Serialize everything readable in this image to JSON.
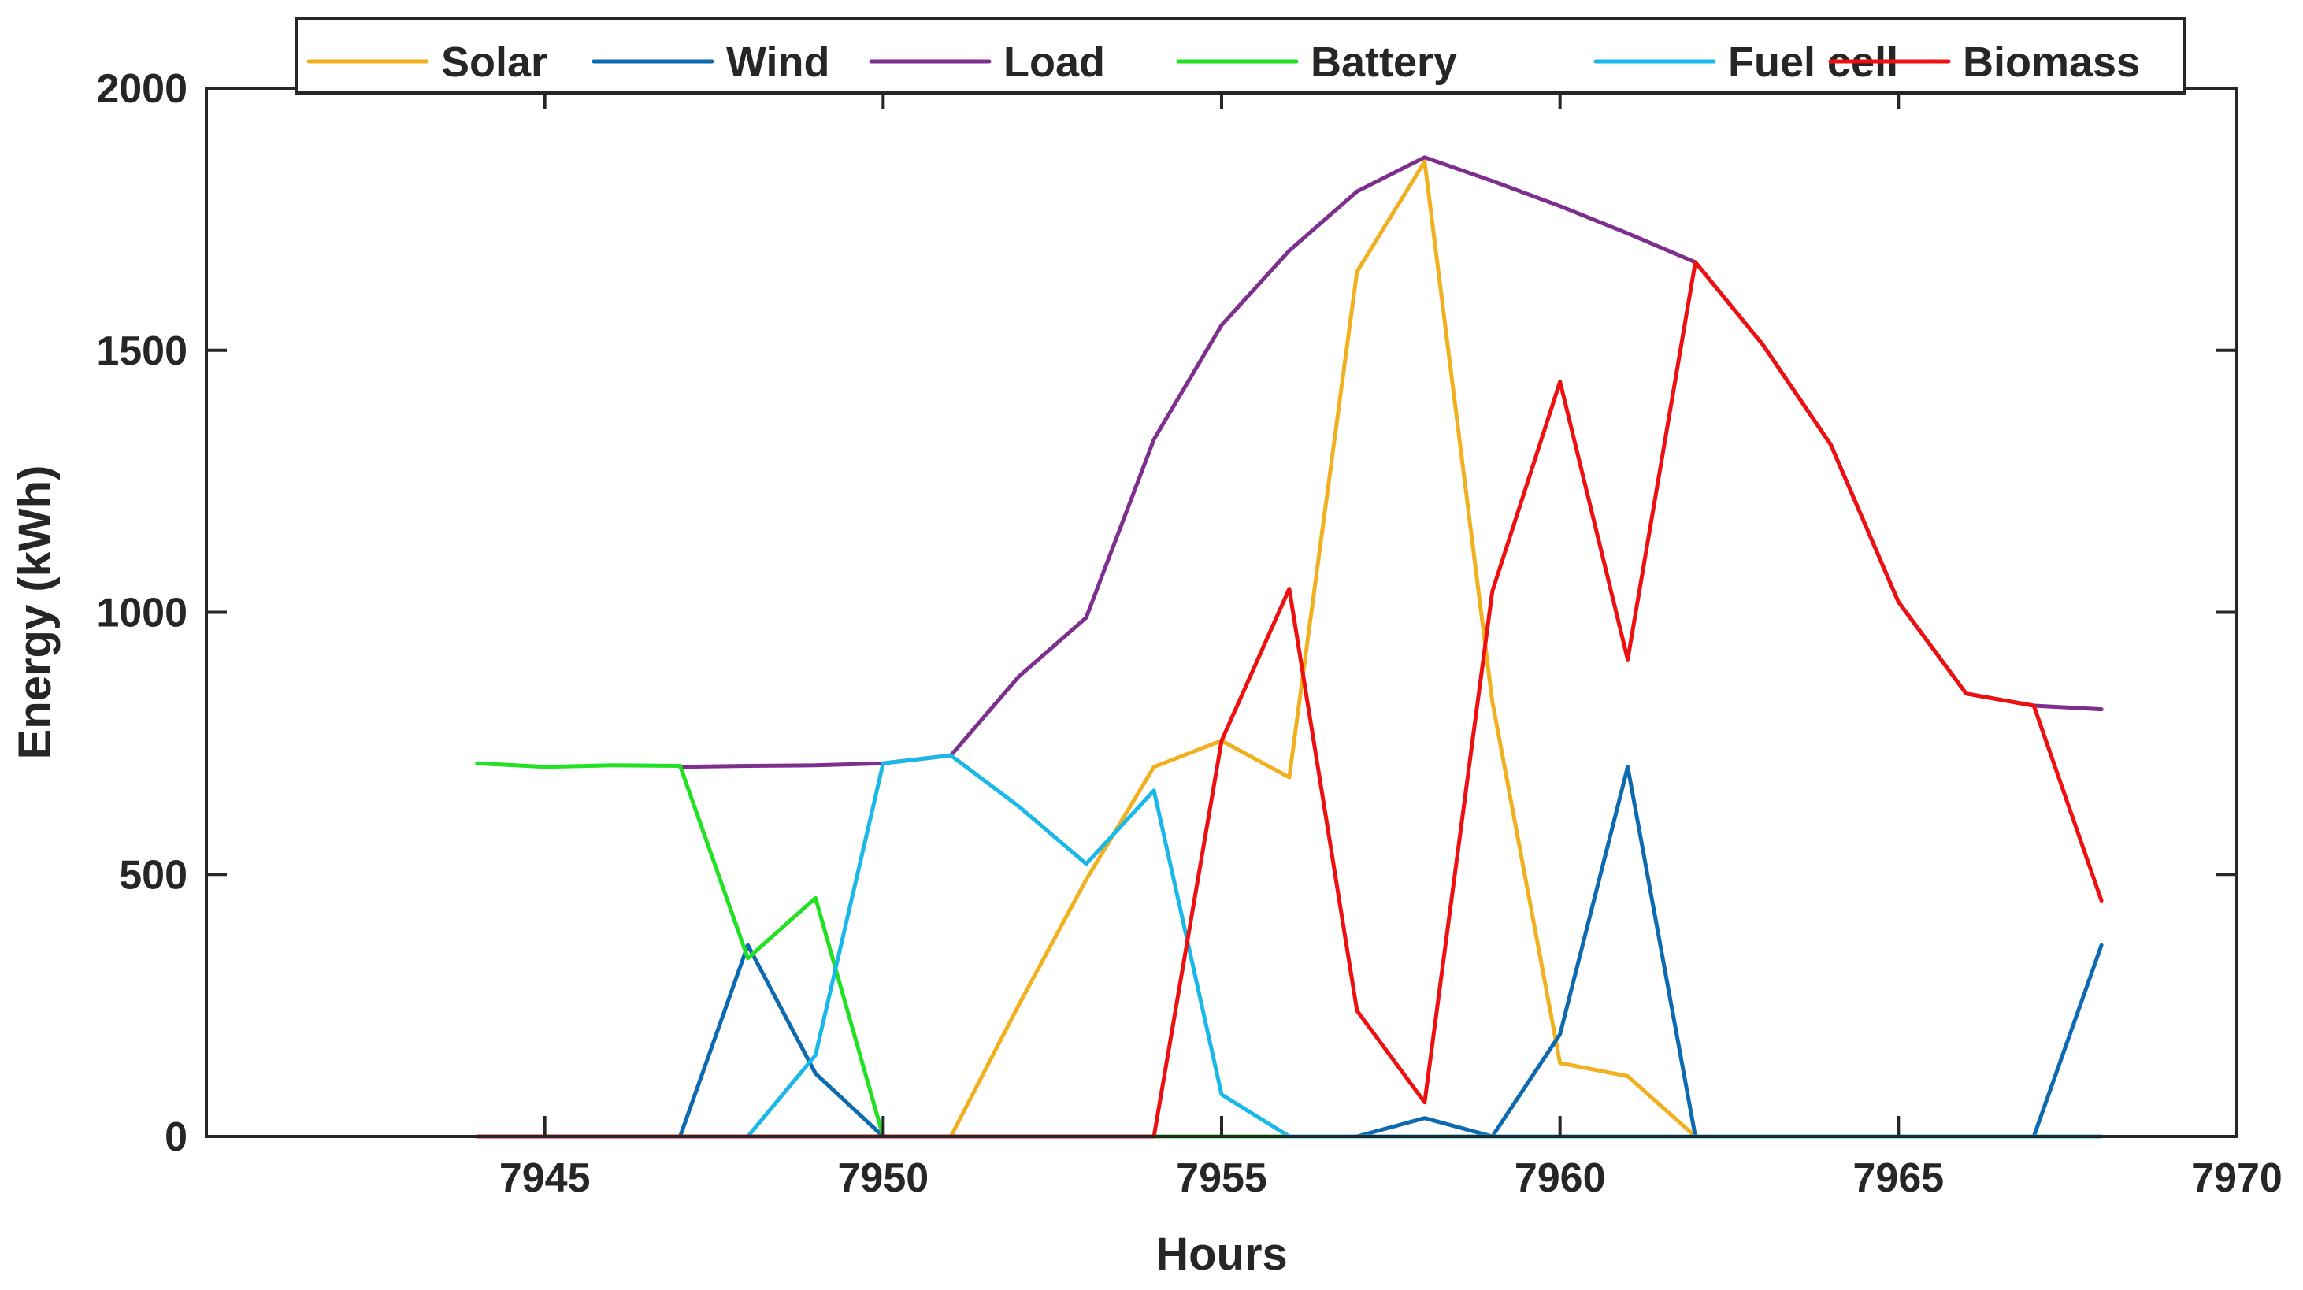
{
  "chart_data": {
    "type": "line",
    "title": "",
    "xlabel": "Hours",
    "ylabel": "Energy (kWh)",
    "xlim": [
      7940,
      7970
    ],
    "ylim": [
      0,
      2000
    ],
    "xticks": [
      7945,
      7950,
      7955,
      7960,
      7965,
      7970
    ],
    "yticks": [
      0,
      500,
      1000,
      1500,
      2000
    ],
    "grid": false,
    "legend_position": "top-center, horizontal",
    "x": [
      7944,
      7945,
      7946,
      7947,
      7948,
      7949,
      7950,
      7951,
      7952,
      7953,
      7954,
      7955,
      7956,
      7957,
      7958,
      7959,
      7960,
      7961,
      7962,
      7963,
      7964,
      7965,
      7966,
      7967,
      7968
    ],
    "series": [
      {
        "name": "Solar",
        "color": "#f0b020",
        "values": [
          0,
          0,
          0,
          0,
          0,
          0,
          0,
          0,
          250,
          490,
          705,
          755,
          685,
          1650,
          1860,
          830,
          140,
          115,
          0,
          0,
          0,
          0,
          0,
          0,
          0
        ]
      },
      {
        "name": "Wind",
        "color": "#0d6ab0",
        "values": [
          0,
          0,
          0,
          0,
          365,
          120,
          0,
          0,
          0,
          0,
          0,
          0,
          0,
          0,
          35,
          0,
          195,
          705,
          0,
          0,
          0,
          0,
          0,
          0,
          365
        ]
      },
      {
        "name": "Load",
        "color": "#7e2f8e",
        "values": [
          null,
          null,
          null,
          705,
          707,
          708,
          712,
          727,
          877,
          990,
          1330,
          1548,
          1690,
          1803,
          1868,
          1823,
          1775,
          1723,
          1668,
          1510,
          1320,
          1020,
          845,
          822,
          815
        ]
      },
      {
        "name": "Battery",
        "color": "#22e022",
        "values": [
          712,
          705,
          708,
          707,
          340,
          455,
          0,
          null,
          null,
          null,
          0,
          0,
          0,
          null,
          null,
          null,
          null,
          null,
          null,
          null,
          null,
          null,
          null,
          null,
          null
        ]
      },
      {
        "name": "Fuel cell",
        "color": "#1ab8e8",
        "values": [
          null,
          null,
          null,
          null,
          0,
          155,
          712,
          727,
          630,
          520,
          660,
          80,
          0,
          0,
          0,
          0,
          0,
          0,
          0,
          0,
          0,
          0,
          0,
          0,
          0
        ]
      },
      {
        "name": "Biomass",
        "color": "#ee1010",
        "values": [
          0,
          0,
          0,
          0,
          0,
          0,
          0,
          0,
          0,
          0,
          0,
          755,
          1045,
          240,
          65,
          1040,
          1440,
          910,
          1668,
          1510,
          1320,
          1020,
          845,
          822,
          450
        ]
      }
    ]
  }
}
